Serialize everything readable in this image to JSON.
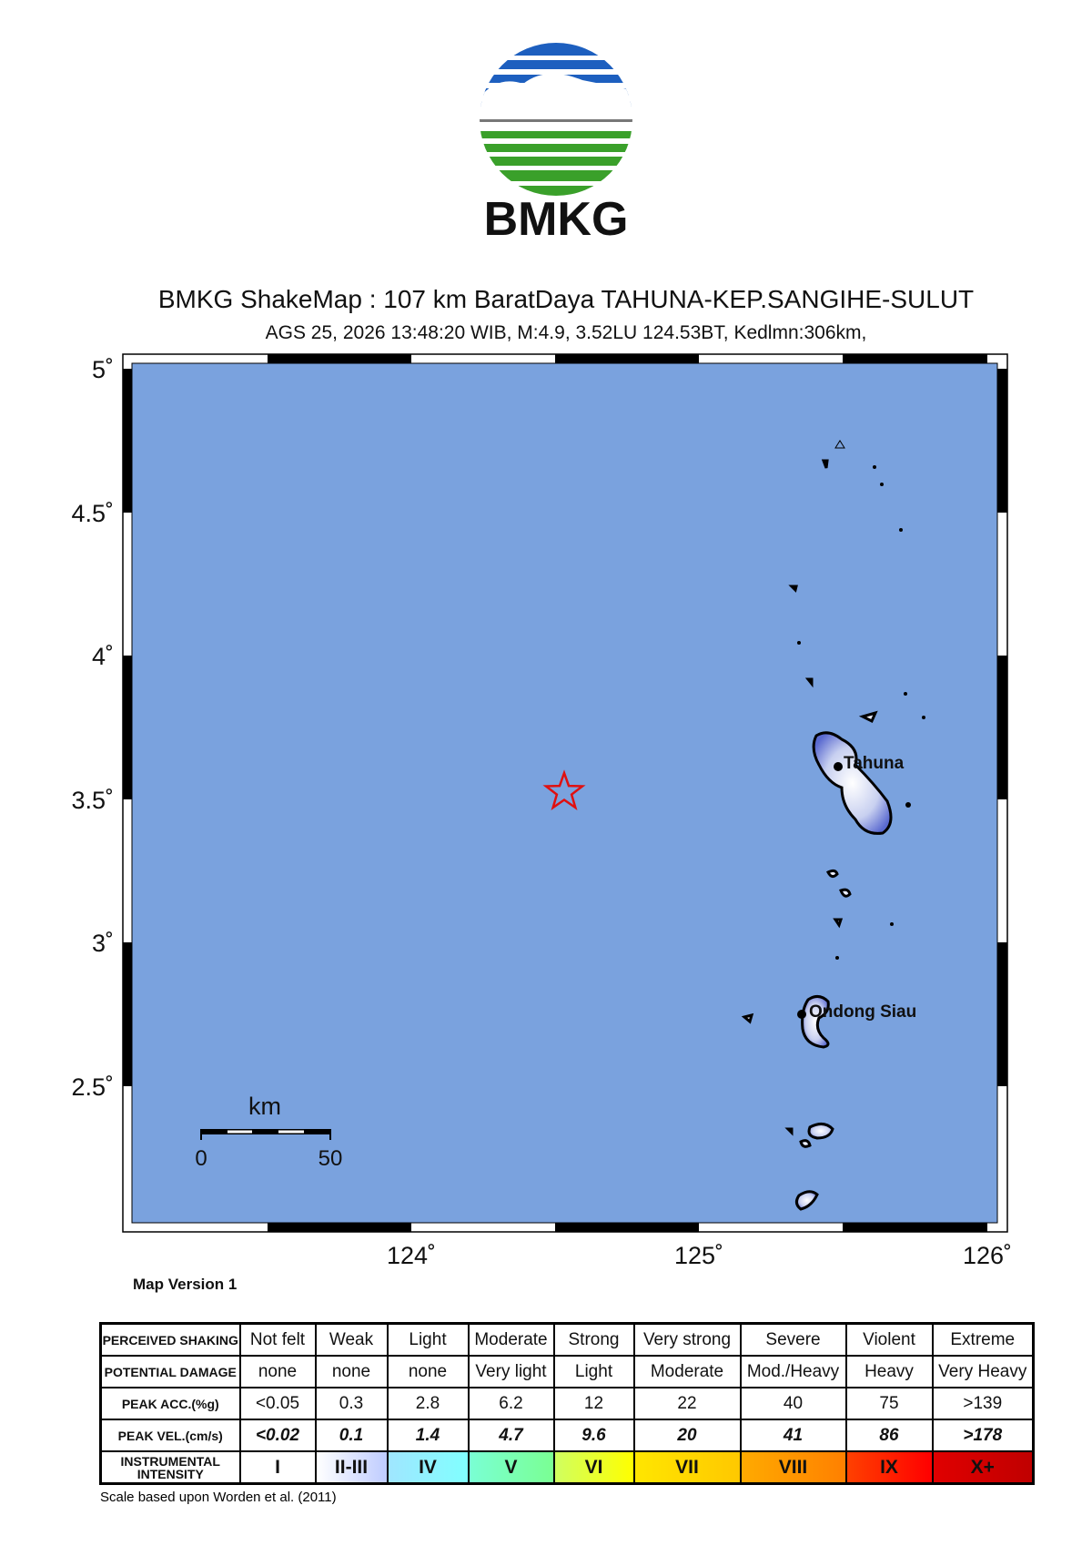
{
  "logo": {
    "text": "BMKG"
  },
  "title": "BMKG ShakeMap : 107 km BaratDaya TAHUNA-KEP.SANGIHE-SULUT",
  "subtitle": "AGS 25, 2026 13:48:20 WIB, M:4.9, 3.52LU 124.53BT, Kedlmn:306km,",
  "map": {
    "lat_labels": [
      "5˚",
      "4.5˚",
      "4˚",
      "3.5˚",
      "3˚",
      "2.5˚"
    ],
    "lon_labels": [
      "124˚",
      "125˚",
      "126˚"
    ],
    "places": [
      "Tahuna",
      "Ondong Siau"
    ],
    "scale_bar": {
      "unit": "km",
      "labels": [
        "0",
        "50"
      ]
    },
    "version": "Map Version 1"
  },
  "legend": {
    "rows": [
      [
        "PERCEIVED SHAKING",
        "Not felt",
        "Weak",
        "Light",
        "Moderate",
        "Strong",
        "Very strong",
        "Severe",
        "Violent",
        "Extreme"
      ],
      [
        "POTENTIAL DAMAGE",
        "none",
        "none",
        "none",
        "Very light",
        "Light",
        "Moderate",
        "Mod./Heavy",
        "Heavy",
        "Very Heavy"
      ],
      [
        "PEAK ACC.(%g)",
        "<0.05",
        "0.3",
        "2.8",
        "6.2",
        "12",
        "22",
        "40",
        "75",
        ">139"
      ],
      [
        "PEAK VEL.(cm/s)",
        "<0.02",
        "0.1",
        "1.4",
        "4.7",
        "9.6",
        "20",
        "41",
        "86",
        ">178"
      ],
      [
        "INSTRUMENTAL INTENSITY",
        "I",
        "II-III",
        "IV",
        "V",
        "VI",
        "VII",
        "VIII",
        "IX",
        "X+"
      ]
    ]
  },
  "footnote": "Scale based upon Worden et al. (2011)"
}
